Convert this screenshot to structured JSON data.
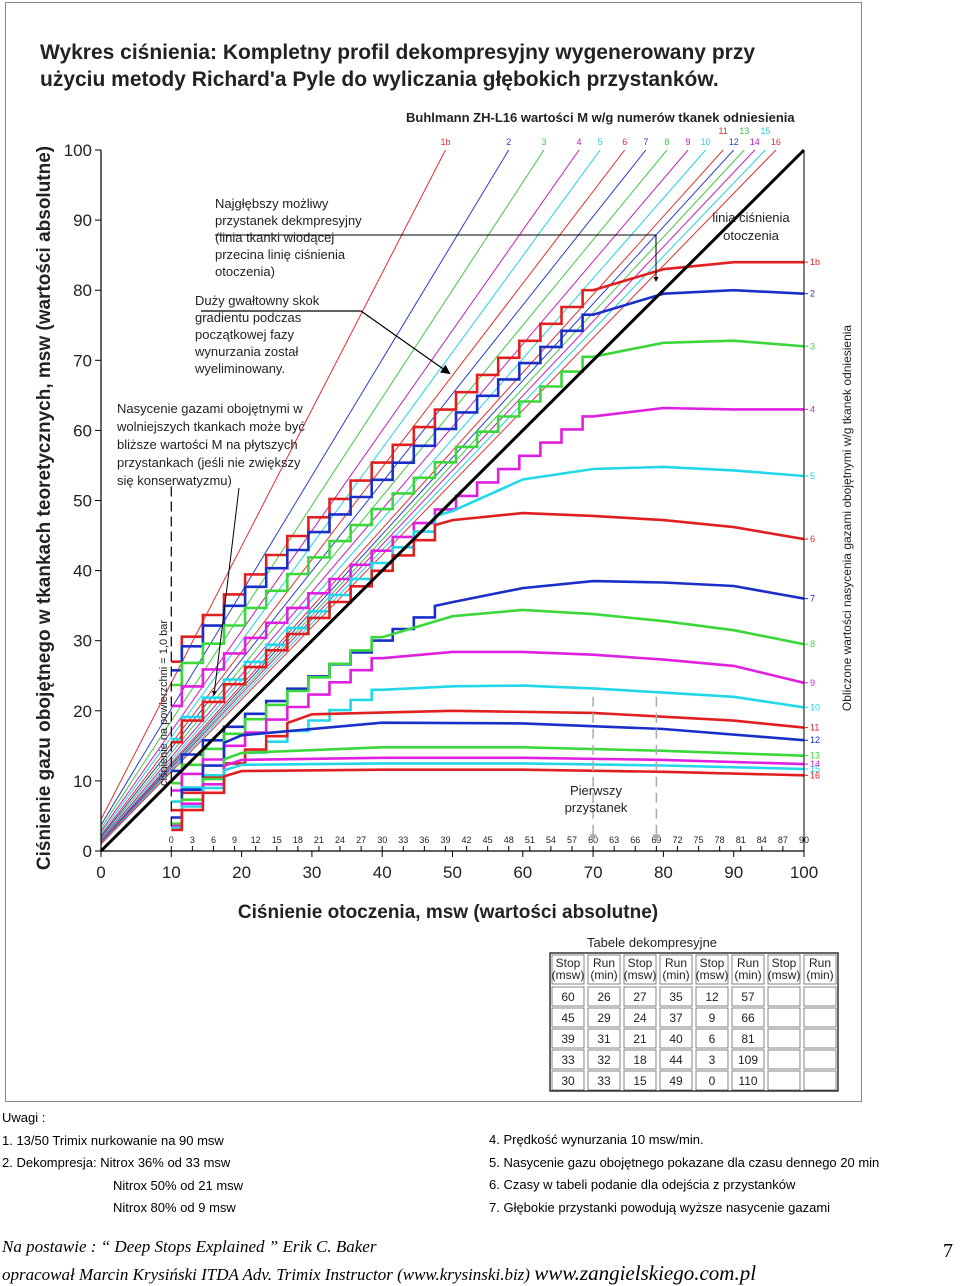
{
  "chart_data": {
    "type": "line",
    "title_lines": [
      "Wykres ciśnienia: Kompletny profil dekompresyjny wygenerowany przy",
      "użyciu metody Richard'a Pyle do wyliczania  głębokich przystanków."
    ],
    "xlabel": "Ciśnienie otoczenia, msw (wartości absolutne)",
    "ylabel": "Ciśnienie gazu obojętnego w tkankach teoretycznych, msw (wartości absolutne)",
    "xlim": [
      0,
      100
    ],
    "ylim": [
      0,
      100
    ],
    "x_ticks": [
      "0",
      "10",
      "20",
      "30",
      "40",
      "50",
      "60",
      "70",
      "80",
      "90",
      "100"
    ],
    "y_ticks": [
      "0",
      "10",
      "20",
      "30",
      "40",
      "50",
      "60",
      "70",
      "80",
      "90",
      "100"
    ],
    "depth_ticks": [
      {
        "x": 10,
        "label": "0"
      },
      {
        "x": 13,
        "label": "3"
      },
      {
        "x": 16,
        "label": "6"
      },
      {
        "x": 19,
        "label": "9"
      },
      {
        "x": 22,
        "label": "12"
      },
      {
        "x": 25,
        "label": "15"
      },
      {
        "x": 28,
        "label": "18"
      },
      {
        "x": 31,
        "label": "21"
      },
      {
        "x": 34,
        "label": "24"
      },
      {
        "x": 37,
        "label": "27"
      },
      {
        "x": 40,
        "label": "30"
      },
      {
        "x": 43,
        "label": "33"
      },
      {
        "x": 46,
        "label": "36"
      },
      {
        "x": 49,
        "label": "39"
      },
      {
        "x": 52,
        "label": "42"
      },
      {
        "x": 55,
        "label": "45"
      },
      {
        "x": 58,
        "label": "48"
      },
      {
        "x": 61,
        "label": "51"
      },
      {
        "x": 64,
        "label": "54"
      },
      {
        "x": 67,
        "label": "57"
      },
      {
        "x": 70,
        "label": "60"
      },
      {
        "x": 73,
        "label": "63"
      },
      {
        "x": 76,
        "label": "66"
      },
      {
        "x": 79,
        "label": "69"
      },
      {
        "x": 82,
        "label": "72"
      },
      {
        "x": 85,
        "label": "75"
      },
      {
        "x": 88,
        "label": "78"
      },
      {
        "x": 91,
        "label": "81"
      },
      {
        "x": 94,
        "label": "84"
      },
      {
        "x": 97,
        "label": "87"
      },
      {
        "x": 100,
        "label": "90"
      }
    ],
    "mvalue_title": "Buhlmann ZH-L16 wartości M w/g numerów tkanek odniesienia",
    "mvalue_lines": [
      {
        "label": "1b",
        "color": "#e03030",
        "x_top": 49.0,
        "y0": 4.5
      },
      {
        "label": "2",
        "color": "#2a3fd0",
        "x_top": 58.0,
        "y0": 3.7
      },
      {
        "label": "3",
        "color": "#43c843",
        "x_top": 63.0,
        "y0": 3.2
      },
      {
        "label": "4",
        "color": "#c020c0",
        "x_top": 68.0,
        "y0": 2.8
      },
      {
        "label": "5",
        "color": "#25d0e0",
        "x_top": 71.0,
        "y0": 2.5
      },
      {
        "label": "6",
        "color": "#e03030",
        "x_top": 74.5,
        "y0": 2.2
      },
      {
        "label": "7",
        "color": "#2a3fd0",
        "x_top": 77.5,
        "y0": 2.0
      },
      {
        "label": "8",
        "color": "#43c843",
        "x_top": 80.5,
        "y0": 1.8
      },
      {
        "label": "9",
        "color": "#c020c0",
        "x_top": 83.5,
        "y0": 1.6
      },
      {
        "label": "10",
        "color": "#25d0e0",
        "x_top": 86.0,
        "y0": 1.5
      },
      {
        "label": "11",
        "color": "#e03030",
        "x_top": 88.5,
        "y0": 1.4
      },
      {
        "label": "12",
        "color": "#2a3fd0",
        "x_top": 90.0,
        "y0": 1.3
      },
      {
        "label": "13",
        "color": "#43c843",
        "x_top": 91.5,
        "y0": 1.2
      },
      {
        "label": "14",
        "color": "#c020c0",
        "x_top": 93.0,
        "y0": 1.2
      },
      {
        "label": "15",
        "color": "#25d0e0",
        "x_top": 94.5,
        "y0": 1.1
      },
      {
        "label": "16",
        "color": "#e03030",
        "x_top": 96.0,
        "y0": 1.0
      }
    ],
    "ambient_line": {
      "label_lines": [
        "linia ciśnienia",
        "otoczenia"
      ],
      "x": [
        0,
        100
      ],
      "y": [
        0,
        100
      ]
    },
    "stops": [
      {
        "depth": 60,
        "x_start": 70,
        "x_end": 69.3
      },
      {
        "depth": 57,
        "x_start": 67,
        "x_end": 60.5
      },
      {
        "depth": 54,
        "x_start": 64,
        "x_end": 55.5
      },
      {
        "depth": 51,
        "x_start": 61,
        "x_end": 55.0
      },
      {
        "depth": 48,
        "x_start": 58,
        "x_end": 55.0
      },
      {
        "depth": 45,
        "x_start": 55,
        "x_end": 49.0
      },
      {
        "depth": 42,
        "x_start": 52,
        "x_end": 48.5
      },
      {
        "depth": 39,
        "x_start": 49,
        "x_end": 43.5
      },
      {
        "depth": 36,
        "x_start": 46,
        "x_end": 43.0
      },
      {
        "depth": 33,
        "x_start": 43,
        "x_end": 37.5
      },
      {
        "depth": 30,
        "x_start": 40,
        "x_end": 34.5
      },
      {
        "depth": 27,
        "x_start": 37,
        "x_end": 31.5
      },
      {
        "depth": 24,
        "x_start": 34,
        "x_end": 28.5
      },
      {
        "depth": 21,
        "x_start": 31,
        "x_end": 26.0
      },
      {
        "depth": 18,
        "x_start": 28,
        "x_end": 23.0
      },
      {
        "depth": 15,
        "x_start": 25,
        "x_end": 20.0
      },
      {
        "depth": 12,
        "x_start": 22,
        "x_end": 16.5
      },
      {
        "depth": 9,
        "x_start": 19,
        "x_end": 13.5
      },
      {
        "depth": 6,
        "x_start": 16,
        "x_end": 10.0
      },
      {
        "depth": 3,
        "x_start": 13,
        "x_end": 10.0
      }
    ],
    "tissue_series": [
      {
        "label": "1b",
        "color": "#e02020",
        "curve": [
          [
            70,
            80.0
          ],
          [
            80,
            83.0
          ],
          [
            90,
            84.0
          ],
          [
            100,
            84.0
          ]
        ]
      },
      {
        "label": "2",
        "color": "#1a2fc8",
        "curve": [
          [
            70,
            76.5
          ],
          [
            80,
            79.5
          ],
          [
            90,
            80.0
          ],
          [
            100,
            79.5
          ]
        ]
      },
      {
        "label": "3",
        "color": "#3ad83a",
        "curve": [
          [
            70,
            70.5
          ],
          [
            80,
            72.5
          ],
          [
            90,
            72.8
          ],
          [
            100,
            72.0
          ]
        ]
      },
      {
        "label": "4",
        "color": "#e020e0",
        "curve": [
          [
            70,
            62.0
          ],
          [
            80,
            63.2
          ],
          [
            90,
            63.0
          ],
          [
            100,
            63.0
          ]
        ]
      },
      {
        "label": "5",
        "color": "#22d8e8",
        "curve": [
          [
            50,
            48.5
          ],
          [
            60,
            53.0
          ],
          [
            70,
            54.5
          ],
          [
            80,
            54.8
          ],
          [
            90,
            54.3
          ],
          [
            100,
            53.5
          ]
        ]
      },
      {
        "label": "6",
        "color": "#e02020",
        "curve": [
          [
            50,
            47.2
          ],
          [
            60,
            48.2
          ],
          [
            70,
            47.8
          ],
          [
            80,
            47.2
          ],
          [
            90,
            46.2
          ],
          [
            100,
            44.5
          ]
        ]
      },
      {
        "label": "7",
        "color": "#1a2fc8",
        "curve": [
          [
            50,
            35.5
          ],
          [
            60,
            37.5
          ],
          [
            70,
            38.5
          ],
          [
            80,
            38.3
          ],
          [
            90,
            37.8
          ],
          [
            100,
            36.0
          ]
        ]
      },
      {
        "label": "8",
        "color": "#3ad83a",
        "curve": [
          [
            40,
            30.5
          ],
          [
            50,
            33.5
          ],
          [
            60,
            34.4
          ],
          [
            70,
            33.8
          ],
          [
            80,
            32.8
          ],
          [
            90,
            31.5
          ],
          [
            100,
            29.5
          ]
        ]
      },
      {
        "label": "9",
        "color": "#e020e0",
        "curve": [
          [
            40,
            27.5
          ],
          [
            50,
            28.4
          ],
          [
            60,
            28.4
          ],
          [
            70,
            28.0
          ],
          [
            80,
            27.3
          ],
          [
            90,
            26.4
          ],
          [
            100,
            24.0
          ]
        ]
      },
      {
        "label": "10",
        "color": "#22d8e8",
        "curve": [
          [
            40,
            23.0
          ],
          [
            50,
            23.5
          ],
          [
            60,
            23.6
          ],
          [
            70,
            23.2
          ],
          [
            80,
            22.6
          ],
          [
            90,
            22.0
          ],
          [
            100,
            20.5
          ]
        ]
      },
      {
        "label": "11",
        "color": "#e02020",
        "curve": [
          [
            30,
            19.5
          ],
          [
            50,
            20.0
          ],
          [
            70,
            19.7
          ],
          [
            90,
            18.6
          ],
          [
            100,
            17.6
          ]
        ]
      },
      {
        "label": "12",
        "color": "#1a2fc8",
        "curve": [
          [
            20,
            16.5
          ],
          [
            40,
            18.3
          ],
          [
            60,
            18.2
          ],
          [
            80,
            17.4
          ],
          [
            100,
            15.8
          ]
        ]
      },
      {
        "label": "13",
        "color": "#3ad83a",
        "curve": [
          [
            20,
            14.0
          ],
          [
            40,
            14.8
          ],
          [
            60,
            14.8
          ],
          [
            80,
            14.3
          ],
          [
            100,
            13.6
          ]
        ]
      },
      {
        "label": "14",
        "color": "#e020e0",
        "curve": [
          [
            20,
            13.0
          ],
          [
            40,
            13.3
          ],
          [
            60,
            13.3
          ],
          [
            80,
            13.0
          ],
          [
            100,
            12.4
          ]
        ]
      },
      {
        "label": "15",
        "color": "#22d8e8",
        "curve": [
          [
            20,
            12.3
          ],
          [
            40,
            12.5
          ],
          [
            60,
            12.5
          ],
          [
            80,
            12.2
          ],
          [
            100,
            11.7
          ]
        ]
      },
      {
        "label": "16",
        "color": "#e02020",
        "curve": [
          [
            20,
            11.4
          ],
          [
            40,
            11.6
          ],
          [
            60,
            11.6
          ],
          [
            80,
            11.3
          ],
          [
            100,
            10.8
          ]
        ]
      }
    ],
    "surface_line_label": "ciśnienie na powierzchni = 1,0 bar",
    "first_stop_label_lines": [
      "Pierwszy",
      "przystanek"
    ],
    "annotations": [
      {
        "id": "deepest-stop",
        "lines": [
          "Najgłębszy możliwy",
          "przystanek dekmpresyjny",
          "(linia tkanki wiodącej",
          "przecina linię ciśnienia",
          "otoczenia)"
        ]
      },
      {
        "id": "large-jump",
        "lines": [
          "Duży gwałtowny skok",
          "gradientu podczas",
          "początkowej fazy",
          "wynurzania został",
          "wyeliminowany."
        ]
      },
      {
        "id": "saturation",
        "lines": [
          "Nasycenie gazami obojętnymi w",
          "wolniejszych tkankach może być",
          "bliższe wartości M na płytszych",
          "przystankach (jeśli nie zwiększy",
          "się konserwatyzmu)"
        ]
      }
    ],
    "right_axis_label": "Obliczone wartości nasycenia gazami obojętnymi w/g tkanek odniesienia",
    "deco_table": {
      "title": "Tabele dekompresyjne",
      "headers": [
        [
          "Stop",
          "(msw)"
        ],
        [
          "Run",
          "(min)"
        ],
        [
          "Stop",
          "(msw)"
        ],
        [
          "Run",
          "(min)"
        ],
        [
          "Stop",
          "(msw)"
        ],
        [
          "Run",
          "(min)"
        ],
        [
          "Stop",
          "(msw)"
        ],
        [
          "Run",
          "(min)"
        ]
      ],
      "rows": [
        [
          "60",
          "26",
          "27",
          "35",
          "12",
          "57",
          "",
          ""
        ],
        [
          "45",
          "29",
          "24",
          "37",
          "9",
          "66",
          "",
          ""
        ],
        [
          "39",
          "31",
          "21",
          "40",
          "6",
          "81",
          "",
          ""
        ],
        [
          "33",
          "32",
          "18",
          "44",
          "3",
          "109",
          "",
          ""
        ],
        [
          "30",
          "33",
          "15",
          "49",
          "0",
          "110",
          "",
          ""
        ]
      ]
    }
  },
  "notes": {
    "heading": "Uwagi :",
    "left": [
      "1. 13/50 Trimix nurkowanie na 90 msw",
      "2. Dekompresja: Nitrox 36% od 33 msw",
      "Nitrox 50% od 21 msw",
      "Nitrox 80% od   9 msw"
    ],
    "right": [
      "4. Prędkość wynurzania 10 msw/min.",
      "5. Nasycenie gazu obojętnego pokazane dla czasu dennego 20 min",
      "6. Czasy w tabeli podanie dla odejścia z przystanków",
      "7. Głębokie przystanki powodują wyższe nasycenie gazami"
    ]
  },
  "footer": {
    "source": "Na postawie :  “ Deep Stops Explained ” Erik C. Baker",
    "author": "opracował Marcin Krysiński ITDA Adv. Trimix Instructor  (www.krysinski.biz)",
    "website": "www.zangielskiego.com.pl",
    "page_number": "7"
  }
}
